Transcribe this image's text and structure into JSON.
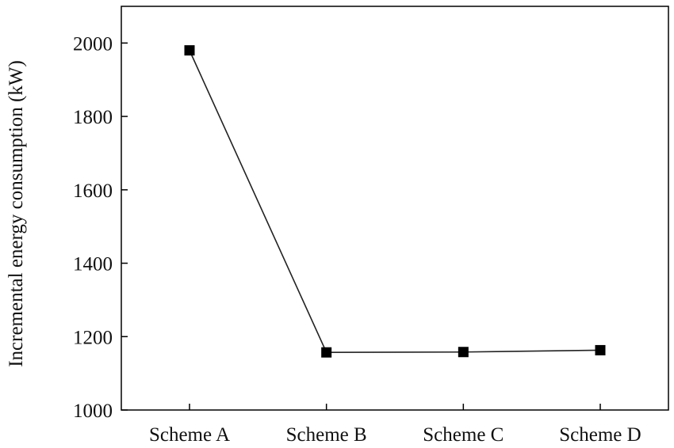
{
  "chart_data": {
    "type": "line",
    "categories": [
      "Scheme A",
      "Scheme B",
      "Scheme C",
      "Scheme D"
    ],
    "series": [
      {
        "values": [
          1980,
          1157,
          1158,
          1163
        ]
      }
    ],
    "title": "",
    "xlabel": "",
    "ylabel": "Incremental energy consumption (kW)",
    "ylim": [
      1000,
      2100
    ],
    "yticks": [
      1000,
      1200,
      1400,
      1600,
      1800,
      2000
    ],
    "grid": false,
    "marker": "square",
    "line_color": "#222222",
    "marker_color": "#000000"
  }
}
